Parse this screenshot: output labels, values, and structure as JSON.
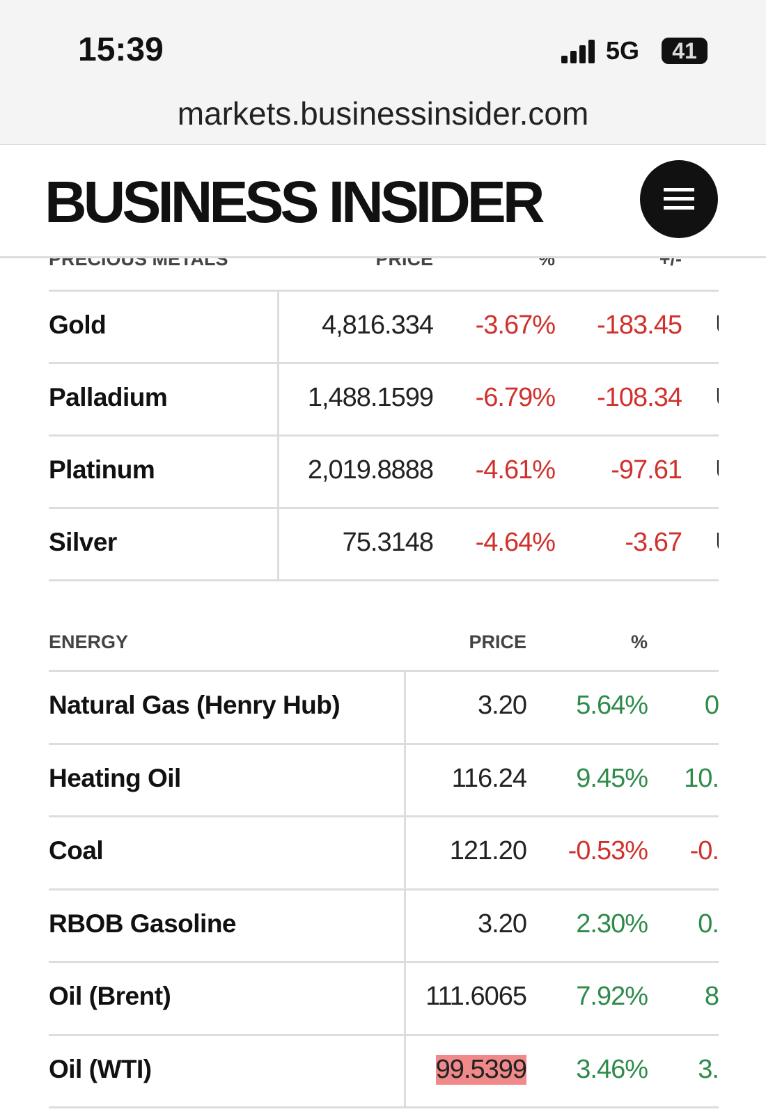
{
  "status_bar": {
    "time": "15:39",
    "network": "5G",
    "battery": "41"
  },
  "address_bar": {
    "url": "markets.businessinsider.com"
  },
  "header": {
    "logo": "BUSINESS INSIDER"
  },
  "tables": [
    {
      "headers": [
        "PRECIOUS METALS",
        "PRICE",
        "%",
        "+/-"
      ],
      "rows": [
        [
          "Gold",
          "4,816.334",
          "-3.67%",
          "-183.45",
          "U"
        ],
        [
          "Palladium",
          "1,488.1599",
          "-6.79%",
          "-108.34",
          "U"
        ],
        [
          "Platinum",
          "2,019.8888",
          "-4.61%",
          "-97.61",
          "U"
        ],
        [
          "Silver",
          "75.3148",
          "-4.64%",
          "-3.67",
          "U"
        ]
      ]
    },
    {
      "headers": [
        "ENERGY",
        "PRICE",
        "%"
      ],
      "rows": [
        [
          "Natural Gas (Henry Hub)",
          "3.20",
          "5.64%",
          "0"
        ],
        [
          "Heating Oil",
          "116.24",
          "9.45%",
          "10."
        ],
        [
          "Coal",
          "121.20",
          "-0.53%",
          "-0."
        ],
        [
          "RBOB Gasoline",
          "3.20",
          "2.30%",
          "0."
        ],
        [
          "Oil (Brent)",
          "111.6065",
          "7.92%",
          "8"
        ],
        [
          "Oil (WTI)",
          "99.5399",
          "3.46%",
          "3."
        ]
      ],
      "highlighted_cell": {
        "row": 5,
        "col": 1
      }
    }
  ]
}
